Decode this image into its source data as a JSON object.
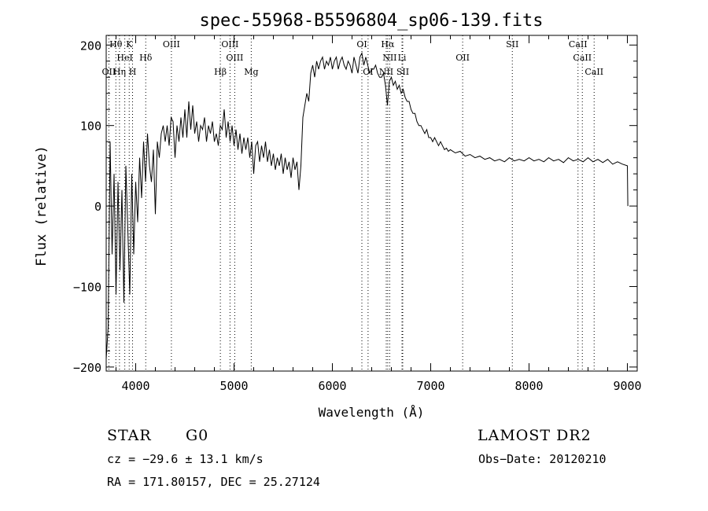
{
  "chart_data": {
    "type": "line",
    "title": "spec-55968-B5596804_sp06-139.fits",
    "xlabel": "Wavelength (Å)",
    "ylabel": "Flux (relative)",
    "xlim": [
      3700,
      9100
    ],
    "ylim": [
      -205,
      212
    ],
    "xticks": [
      {
        "v": 4000,
        "label": "4000"
      },
      {
        "v": 5000,
        "label": "5000"
      },
      {
        "v": 6000,
        "label": "6000"
      },
      {
        "v": 7000,
        "label": "7000"
      },
      {
        "v": 8000,
        "label": "8000"
      },
      {
        "v": 9000,
        "label": "9000"
      }
    ],
    "yticks": [
      {
        "v": -200,
        "label": "−200"
      },
      {
        "v": -100,
        "label": "−100"
      },
      {
        "v": 0,
        "label": "0"
      },
      {
        "v": 100,
        "label": "100"
      },
      {
        "v": 200,
        "label": "200"
      }
    ],
    "lines": [
      {
        "label": "Hθ",
        "x": 3798,
        "row": 0
      },
      {
        "label": "K",
        "x": 3934,
        "row": 0
      },
      {
        "label": "OIII",
        "x": 4363,
        "row": 0
      },
      {
        "label": "OIII",
        "x": 4959,
        "row": 0
      },
      {
        "label": "OI",
        "x": 6300,
        "row": 0
      },
      {
        "label": "Hα",
        "x": 6563,
        "row": 0
      },
      {
        "label": "SII",
        "x": 7830,
        "row": 0
      },
      {
        "label": "CaII",
        "x": 8498,
        "row": 0
      },
      {
        "label": "HeI",
        "x": 3889,
        "row": 1
      },
      {
        "label": "Hδ",
        "x": 4102,
        "row": 1
      },
      {
        "label": "OIII",
        "x": 5007,
        "row": 1
      },
      {
        "label": "NII",
        "x": 6583,
        "row": 1
      },
      {
        "label": "Li",
        "x": 6708,
        "row": 1
      },
      {
        "label": "OII",
        "x": 7325,
        "row": 1
      },
      {
        "label": "CaII",
        "x": 8542,
        "row": 1
      },
      {
        "label": "OII",
        "x": 3727,
        "row": 2
      },
      {
        "label": "Hη",
        "x": 3835,
        "row": 2
      },
      {
        "label": "H",
        "x": 3968,
        "row": 2
      },
      {
        "label": "Hβ",
        "x": 4861,
        "row": 2
      },
      {
        "label": "Mg",
        "x": 5175,
        "row": 2
      },
      {
        "label": "OI",
        "x": 6363,
        "row": 2
      },
      {
        "label": "NII",
        "x": 6548,
        "row": 2
      },
      {
        "label": "SII",
        "x": 6716,
        "row": 2
      },
      {
        "label": "CaII",
        "x": 8662,
        "row": 2
      }
    ],
    "series": [
      {
        "name": "flux",
        "points": [
          [
            3700,
            -190
          ],
          [
            3720,
            -150
          ],
          [
            3740,
            80
          ],
          [
            3760,
            -60
          ],
          [
            3780,
            40
          ],
          [
            3800,
            -110
          ],
          [
            3820,
            30
          ],
          [
            3840,
            -80
          ],
          [
            3860,
            20
          ],
          [
            3880,
            -120
          ],
          [
            3900,
            50
          ],
          [
            3920,
            -30
          ],
          [
            3940,
            -110
          ],
          [
            3960,
            40
          ],
          [
            3980,
            -60
          ],
          [
            4000,
            30
          ],
          [
            4020,
            -20
          ],
          [
            4040,
            60
          ],
          [
            4060,
            10
          ],
          [
            4080,
            80
          ],
          [
            4100,
            30
          ],
          [
            4120,
            90
          ],
          [
            4140,
            50
          ],
          [
            4160,
            30
          ],
          [
            4180,
            70
          ],
          [
            4200,
            -10
          ],
          [
            4220,
            80
          ],
          [
            4240,
            60
          ],
          [
            4260,
            90
          ],
          [
            4280,
            100
          ],
          [
            4300,
            80
          ],
          [
            4320,
            100
          ],
          [
            4340,
            75
          ],
          [
            4360,
            110
          ],
          [
            4380,
            105
          ],
          [
            4400,
            60
          ],
          [
            4420,
            100
          ],
          [
            4440,
            80
          ],
          [
            4460,
            110
          ],
          [
            4480,
            85
          ],
          [
            4500,
            120
          ],
          [
            4520,
            85
          ],
          [
            4540,
            130
          ],
          [
            4560,
            95
          ],
          [
            4580,
            125
          ],
          [
            4600,
            90
          ],
          [
            4620,
            105
          ],
          [
            4640,
            80
          ],
          [
            4660,
            100
          ],
          [
            4680,
            95
          ],
          [
            4700,
            110
          ],
          [
            4720,
            80
          ],
          [
            4740,
            100
          ],
          [
            4760,
            90
          ],
          [
            4780,
            105
          ],
          [
            4800,
            80
          ],
          [
            4820,
            90
          ],
          [
            4840,
            75
          ],
          [
            4860,
            100
          ],
          [
            4880,
            95
          ],
          [
            4900,
            120
          ],
          [
            4920,
            85
          ],
          [
            4940,
            105
          ],
          [
            4960,
            80
          ],
          [
            4980,
            100
          ],
          [
            5000,
            75
          ],
          [
            5020,
            95
          ],
          [
            5040,
            70
          ],
          [
            5060,
            90
          ],
          [
            5080,
            65
          ],
          [
            5100,
            85
          ],
          [
            5120,
            70
          ],
          [
            5140,
            85
          ],
          [
            5160,
            60
          ],
          [
            5180,
            80
          ],
          [
            5200,
            40
          ],
          [
            5220,
            75
          ],
          [
            5240,
            80
          ],
          [
            5260,
            55
          ],
          [
            5280,
            75
          ],
          [
            5300,
            60
          ],
          [
            5320,
            80
          ],
          [
            5340,
            55
          ],
          [
            5360,
            70
          ],
          [
            5380,
            50
          ],
          [
            5400,
            65
          ],
          [
            5420,
            45
          ],
          [
            5440,
            60
          ],
          [
            5460,
            50
          ],
          [
            5480,
            65
          ],
          [
            5500,
            40
          ],
          [
            5520,
            60
          ],
          [
            5540,
            45
          ],
          [
            5560,
            55
          ],
          [
            5580,
            35
          ],
          [
            5600,
            60
          ],
          [
            5620,
            45
          ],
          [
            5640,
            55
          ],
          [
            5660,
            20
          ],
          [
            5680,
            50
          ],
          [
            5700,
            110
          ],
          [
            5720,
            125
          ],
          [
            5740,
            140
          ],
          [
            5760,
            130
          ],
          [
            5780,
            165
          ],
          [
            5800,
            175
          ],
          [
            5820,
            160
          ],
          [
            5840,
            180
          ],
          [
            5860,
            170
          ],
          [
            5880,
            180
          ],
          [
            5900,
            185
          ],
          [
            5920,
            170
          ],
          [
            5940,
            180
          ],
          [
            5960,
            175
          ],
          [
            5980,
            185
          ],
          [
            6000,
            170
          ],
          [
            6020,
            180
          ],
          [
            6040,
            185
          ],
          [
            6060,
            170
          ],
          [
            6080,
            180
          ],
          [
            6100,
            185
          ],
          [
            6120,
            175
          ],
          [
            6140,
            170
          ],
          [
            6160,
            180
          ],
          [
            6180,
            175
          ],
          [
            6200,
            165
          ],
          [
            6220,
            185
          ],
          [
            6240,
            175
          ],
          [
            6260,
            165
          ],
          [
            6280,
            185
          ],
          [
            6300,
            190
          ],
          [
            6320,
            175
          ],
          [
            6340,
            185
          ],
          [
            6360,
            175
          ],
          [
            6380,
            165
          ],
          [
            6400,
            170
          ],
          [
            6420,
            170
          ],
          [
            6440,
            175
          ],
          [
            6460,
            165
          ],
          [
            6480,
            160
          ],
          [
            6500,
            160
          ],
          [
            6520,
            165
          ],
          [
            6540,
            150
          ],
          [
            6560,
            125
          ],
          [
            6580,
            155
          ],
          [
            6600,
            160
          ],
          [
            6620,
            150
          ],
          [
            6640,
            155
          ],
          [
            6660,
            145
          ],
          [
            6680,
            150
          ],
          [
            6700,
            140
          ],
          [
            6720,
            145
          ],
          [
            6740,
            135
          ],
          [
            6760,
            130
          ],
          [
            6780,
            130
          ],
          [
            6800,
            120
          ],
          [
            6820,
            115
          ],
          [
            6840,
            115
          ],
          [
            6860,
            105
          ],
          [
            6880,
            100
          ],
          [
            6900,
            100
          ],
          [
            6920,
            95
          ],
          [
            6940,
            90
          ],
          [
            6960,
            95
          ],
          [
            6980,
            85
          ],
          [
            7000,
            85
          ],
          [
            7020,
            80
          ],
          [
            7040,
            85
          ],
          [
            7060,
            80
          ],
          [
            7080,
            75
          ],
          [
            7100,
            80
          ],
          [
            7120,
            75
          ],
          [
            7140,
            70
          ],
          [
            7160,
            72
          ],
          [
            7180,
            68
          ],
          [
            7200,
            70
          ],
          [
            7250,
            66
          ],
          [
            7300,
            68
          ],
          [
            7350,
            62
          ],
          [
            7400,
            64
          ],
          [
            7450,
            60
          ],
          [
            7500,
            62
          ],
          [
            7550,
            58
          ],
          [
            7600,
            60
          ],
          [
            7650,
            56
          ],
          [
            7700,
            58
          ],
          [
            7750,
            55
          ],
          [
            7800,
            60
          ],
          [
            7850,
            56
          ],
          [
            7900,
            58
          ],
          [
            7950,
            56
          ],
          [
            8000,
            60
          ],
          [
            8050,
            56
          ],
          [
            8100,
            58
          ],
          [
            8150,
            55
          ],
          [
            8200,
            60
          ],
          [
            8250,
            56
          ],
          [
            8300,
            58
          ],
          [
            8350,
            54
          ],
          [
            8400,
            60
          ],
          [
            8450,
            56
          ],
          [
            8500,
            58
          ],
          [
            8550,
            55
          ],
          [
            8600,
            60
          ],
          [
            8650,
            55
          ],
          [
            8700,
            58
          ],
          [
            8750,
            54
          ],
          [
            8800,
            58
          ],
          [
            8850,
            52
          ],
          [
            8900,
            55
          ],
          [
            8950,
            52
          ],
          [
            9000,
            50
          ],
          [
            9005,
            0
          ]
        ]
      }
    ]
  },
  "info": {
    "object": "STAR",
    "subclass": "G0",
    "survey": "LAMOST DR2",
    "cz": "cz = −29.6 ± 13.1 km/s",
    "obs_date": "Obs−Date: 20120210",
    "coords": "RA = 171.80157, DEC =  25.27124"
  }
}
